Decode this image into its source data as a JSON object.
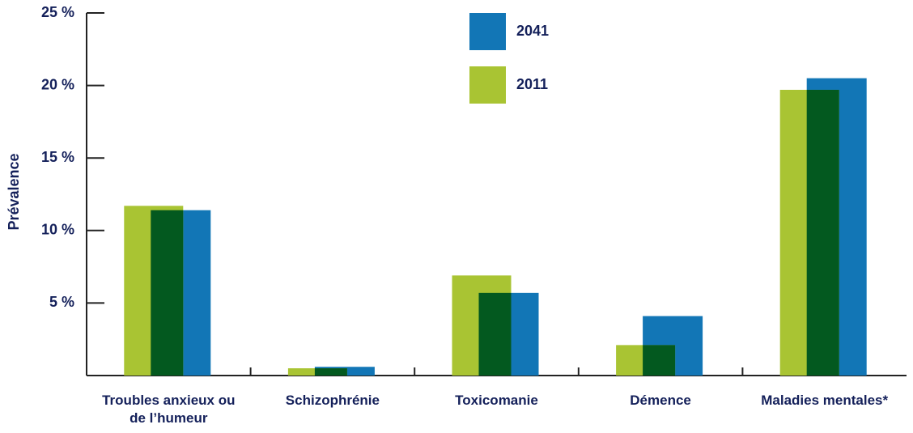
{
  "chart_data": {
    "type": "bar",
    "y_label": "Prévalence",
    "categories": [
      "Troubles anxieux ou de l’humeur",
      "Schizophrénie",
      "Toxicomanie",
      "Démence",
      "Maladies mentales*"
    ],
    "series": [
      {
        "name": "2011",
        "color": "#a9c433",
        "values": [
          11.7,
          0.5,
          6.9,
          2.1,
          19.7
        ]
      },
      {
        "name": "2041",
        "color": "#1276b6",
        "values": [
          11.4,
          0.6,
          5.7,
          4.1,
          20.5
        ]
      }
    ],
    "overlap_color": "#03591f",
    "ylim": [
      0,
      25
    ],
    "yticks": [
      {
        "value": 5,
        "label": "5 %"
      },
      {
        "value": 10,
        "label": "10 %"
      },
      {
        "value": 15,
        "label": "15 %"
      },
      {
        "value": 20,
        "label": "20 %"
      },
      {
        "value": 25,
        "label": "25 %"
      }
    ]
  }
}
